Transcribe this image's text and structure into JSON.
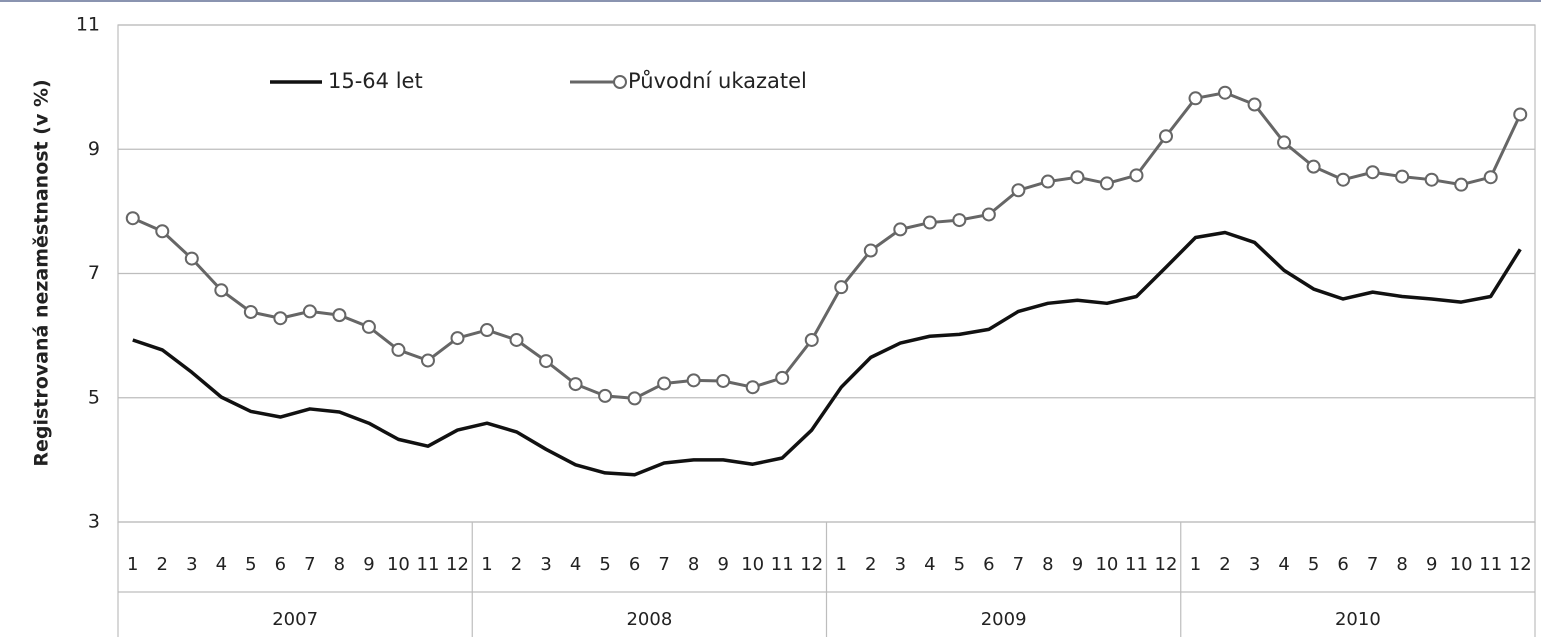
{
  "chart_data": {
    "type": "line",
    "y_label": "Registrovaná nezaměstnanost (v %)",
    "categories": [
      "1",
      "2",
      "3",
      "4",
      "5",
      "6",
      "7",
      "8",
      "9",
      "10",
      "11",
      "12",
      "1",
      "2",
      "3",
      "4",
      "5",
      "6",
      "7",
      "8",
      "9",
      "10",
      "11",
      "12",
      "1",
      "2",
      "3",
      "4",
      "5",
      "6",
      "7",
      "8",
      "9",
      "10",
      "11",
      "12",
      "1",
      "2",
      "3",
      "4",
      "5",
      "6",
      "7",
      "8",
      "9",
      "10",
      "11",
      "12"
    ],
    "x_groups": [
      "2007",
      "2008",
      "2009",
      "2010"
    ],
    "series": [
      {
        "name": "15-64 let",
        "color": "#111111",
        "marker": false,
        "values": [
          5.93,
          5.77,
          5.41,
          5.01,
          4.78,
          4.69,
          4.82,
          4.77,
          4.59,
          4.33,
          4.22,
          4.48,
          4.59,
          4.45,
          4.17,
          3.92,
          3.79,
          3.76,
          3.95,
          4.0,
          4.0,
          3.93,
          4.03,
          4.48,
          5.17,
          5.65,
          5.88,
          5.99,
          6.02,
          6.1,
          6.39,
          6.52,
          6.57,
          6.52,
          6.63,
          7.1,
          7.58,
          7.66,
          7.5,
          7.05,
          6.75,
          6.59,
          6.7,
          6.63,
          6.59,
          6.54,
          6.63,
          7.39
        ]
      },
      {
        "name": "Původní ukazatel",
        "color": "#666666",
        "marker": true,
        "values": [
          7.89,
          7.68,
          7.24,
          6.73,
          6.38,
          6.28,
          6.39,
          6.33,
          6.14,
          5.77,
          5.6,
          5.96,
          6.09,
          5.93,
          5.59,
          5.22,
          5.03,
          4.99,
          5.23,
          5.28,
          5.27,
          5.17,
          5.32,
          5.93,
          6.78,
          7.37,
          7.71,
          7.82,
          7.86,
          7.95,
          8.34,
          8.48,
          8.55,
          8.45,
          8.58,
          9.21,
          9.82,
          9.91,
          9.72,
          9.11,
          8.72,
          8.51,
          8.63,
          8.56,
          8.51,
          8.43,
          8.55,
          9.56
        ]
      }
    ],
    "ylim": [
      3,
      11
    ],
    "yticks": [
      3,
      5,
      7,
      9,
      11
    ],
    "grid": true
  }
}
